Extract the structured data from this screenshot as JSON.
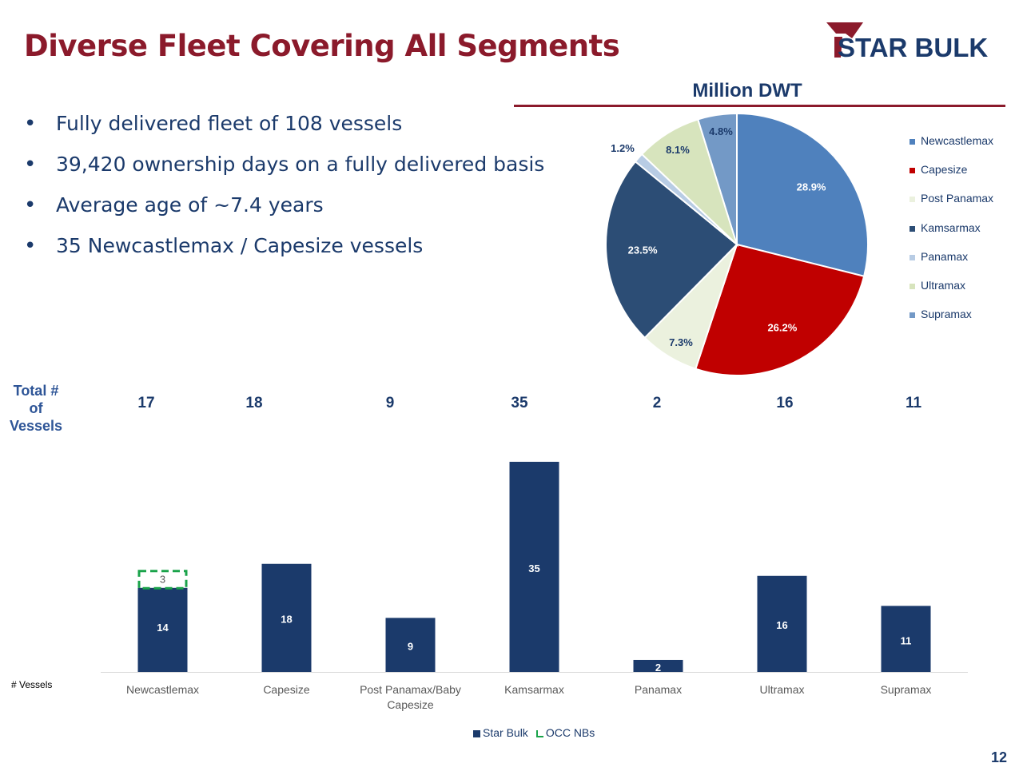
{
  "title": "Diverse Fleet Covering All Segments",
  "logo_text": "STAR BULK",
  "bullets": [
    "Fully delivered fleet of 108 vessels",
    "39,420 ownership days on a fully delivered basis",
    "Average age of ~7.4 years",
    "35 Newcastlemax / Capesize vessels"
  ],
  "bullet_symbol": "•",
  "total_label": "Total # of Vessels",
  "total_values": [
    "17",
    "18",
    "9",
    "35",
    "2",
    "16",
    "11"
  ],
  "vessels_axis_label": "# Vessels",
  "page_number": "12",
  "colors": {
    "title": "#8b1a2b",
    "navy": "#1b3a6b",
    "star_bulk": "#1b3a6b",
    "occ": "#1aa34a"
  },
  "chart_data": [
    {
      "type": "pie",
      "title": "Million DWT",
      "labels": [
        "Newcastlemax",
        "Capesize",
        "Post Panamax",
        "Kamsarmax",
        "Panamax",
        "Ultramax",
        "Supramax"
      ],
      "values": [
        28.9,
        26.2,
        7.3,
        23.5,
        1.2,
        8.1,
        4.8
      ],
      "value_labels": [
        "28.9%",
        "26.2%",
        "7.3%",
        "23.5%",
        "1.2%",
        "8.1%",
        "4.8%"
      ],
      "colors": [
        "#4f81bd",
        "#c00000",
        "#ebf1de",
        "#2c4d75",
        "#b8cce4",
        "#d7e4bd",
        "#7399c6"
      ],
      "legend_position": "right"
    },
    {
      "type": "bar",
      "stacked": true,
      "categories": [
        "Newcastlemax",
        "Capesize",
        "Post Panamax/Baby Capesize",
        "Kamsarmax",
        "Panamax",
        "Ultramax",
        "Supramax"
      ],
      "series": [
        {
          "name": "Star Bulk",
          "values": [
            14,
            18,
            9,
            35,
            2,
            16,
            11
          ],
          "color": "#1b3a6b"
        },
        {
          "name": "OCC NBs",
          "values": [
            3,
            0,
            0,
            0,
            0,
            0,
            0
          ],
          "color": "#1aa34a"
        }
      ],
      "ylim": [
        0,
        35
      ],
      "grid": false,
      "legend_position": "bottom"
    }
  ]
}
